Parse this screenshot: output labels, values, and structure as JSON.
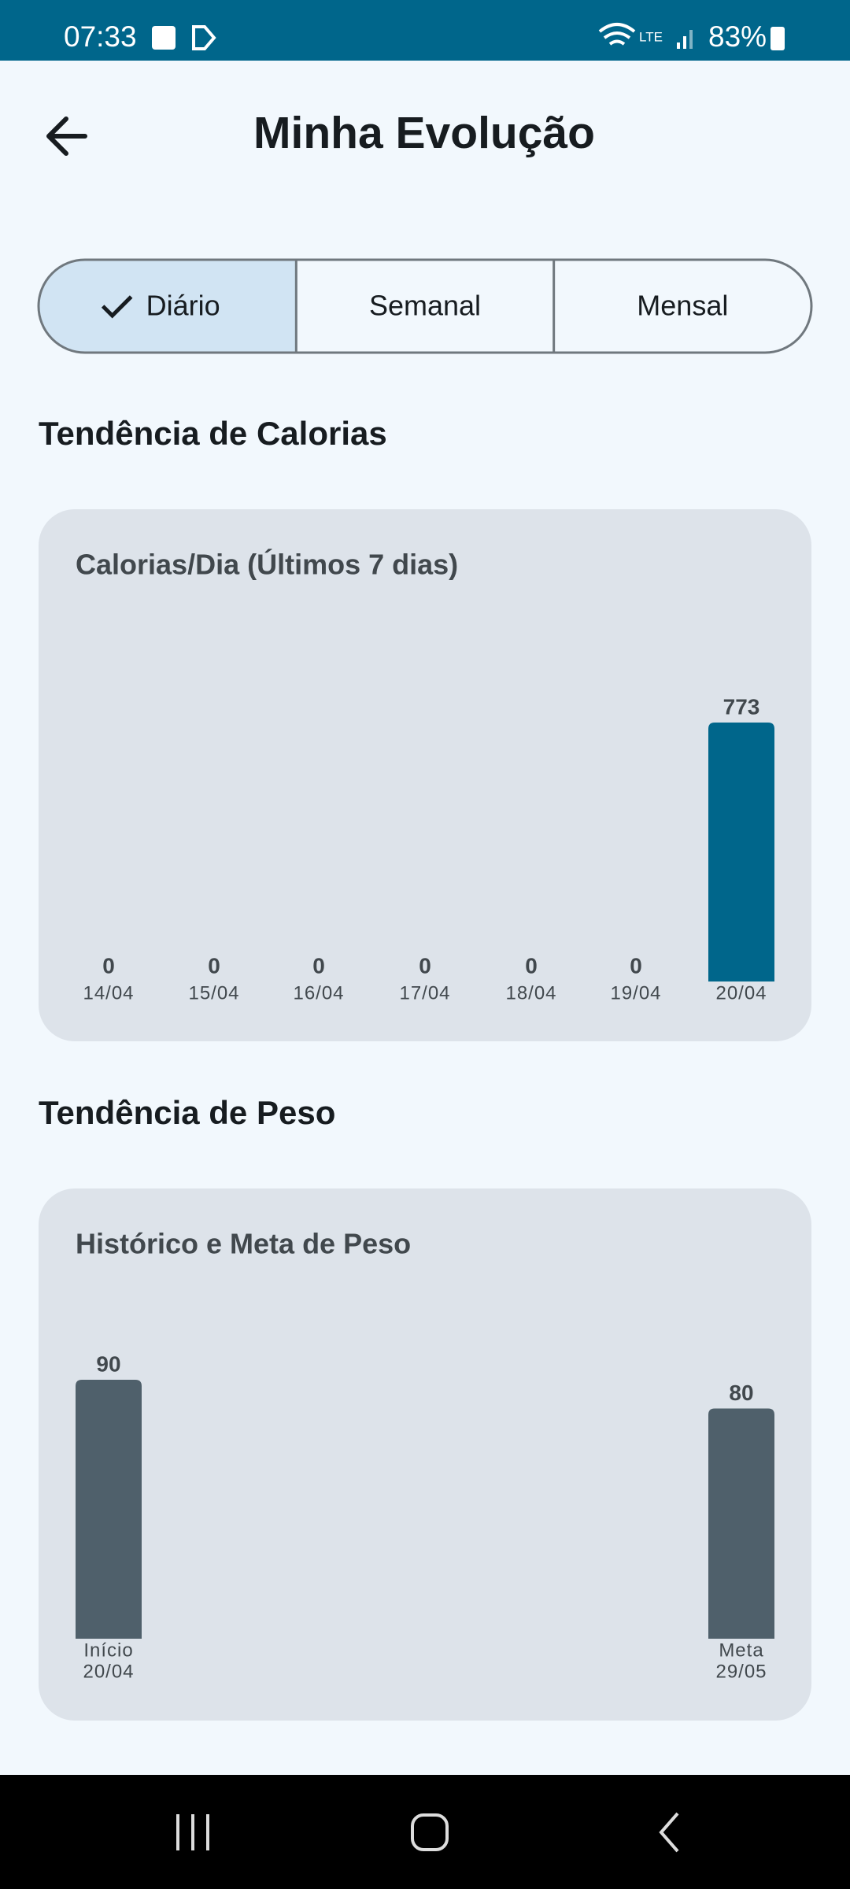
{
  "status_bar": {
    "time": "07:33",
    "battery": "83%"
  },
  "header": {
    "title": "Minha Evolução"
  },
  "tabs": {
    "items": [
      "Diário",
      "Semanal",
      "Mensal"
    ],
    "selected": 0
  },
  "sections": [
    {
      "heading": "Tendência de Calorias",
      "chart_data": {
        "type": "bar",
        "title": "Calorias/Dia (Últimos 7 dias)",
        "categories": [
          "14/04",
          "15/04",
          "16/04",
          "17/04",
          "18/04",
          "19/04",
          "20/04"
        ],
        "values": [
          0,
          0,
          0,
          0,
          0,
          0,
          773
        ],
        "color": "#00668b"
      }
    },
    {
      "heading": "Tendência de Peso",
      "chart_data": {
        "type": "bar",
        "title": "Histórico e Meta de Peso",
        "categories": [
          "Início",
          "Meta"
        ],
        "dates": [
          "20/04",
          "29/05"
        ],
        "values": [
          90,
          80
        ],
        "color": "#4f606b"
      }
    }
  ]
}
